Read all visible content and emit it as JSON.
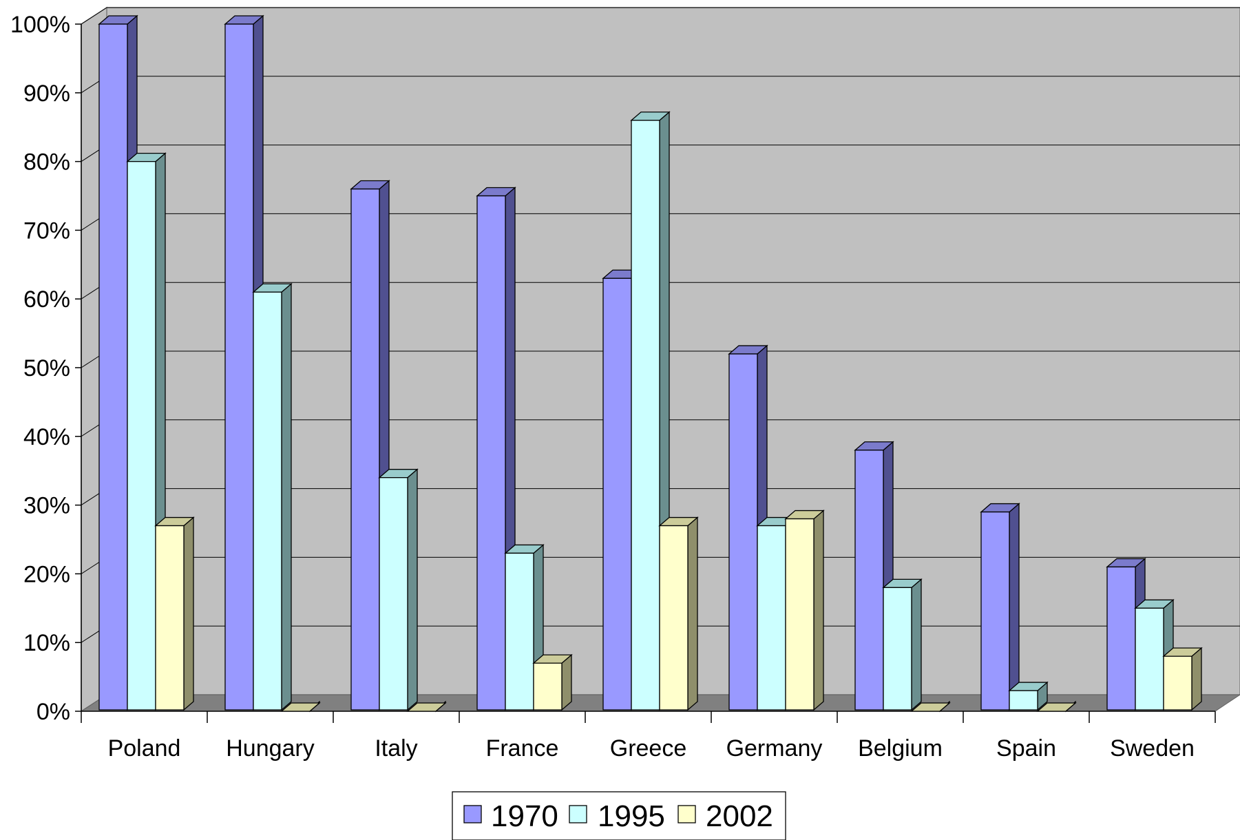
{
  "chart_data": {
    "type": "bar",
    "title": "",
    "xlabel": "",
    "ylabel": "",
    "ylim": [
      0,
      100
    ],
    "y_tick_values": [
      0,
      10,
      20,
      30,
      40,
      50,
      60,
      70,
      80,
      90,
      100
    ],
    "y_tick_labels": [
      "0%",
      "10%",
      "20%",
      "30%",
      "40%",
      "50%",
      "60%",
      "70%",
      "80%",
      "90%",
      "100%"
    ],
    "categories": [
      "Poland",
      "Hungary",
      "Italy",
      "France",
      "Greece",
      "Germany",
      "Belgium",
      "Spain",
      "Sweden"
    ],
    "series": [
      {
        "name": "1970",
        "values": [
          100,
          100,
          76,
          75,
          63,
          52,
          38,
          29,
          21
        ]
      },
      {
        "name": "1995",
        "values": [
          80,
          61,
          34,
          23,
          86,
          27,
          18,
          3,
          15
        ]
      },
      {
        "name": "2002",
        "values": [
          27,
          0,
          0,
          7,
          27,
          28,
          0,
          0,
          8
        ]
      }
    ],
    "colors": {
      "1970": {
        "front": "#9999ff",
        "top": "#7b7bcc",
        "side": "#505090"
      },
      "1995": {
        "front": "#ccffff",
        "top": "#99cccc",
        "side": "#6b8f8f"
      },
      "2002": {
        "front": "#ffffcc",
        "top": "#cccc9a",
        "side": "#8f8f6b"
      },
      "wall": "#c0c0c0",
      "floor": "#808080"
    },
    "grid": true,
    "legend_position": "bottom-center",
    "style": "3d-clustered-column"
  }
}
